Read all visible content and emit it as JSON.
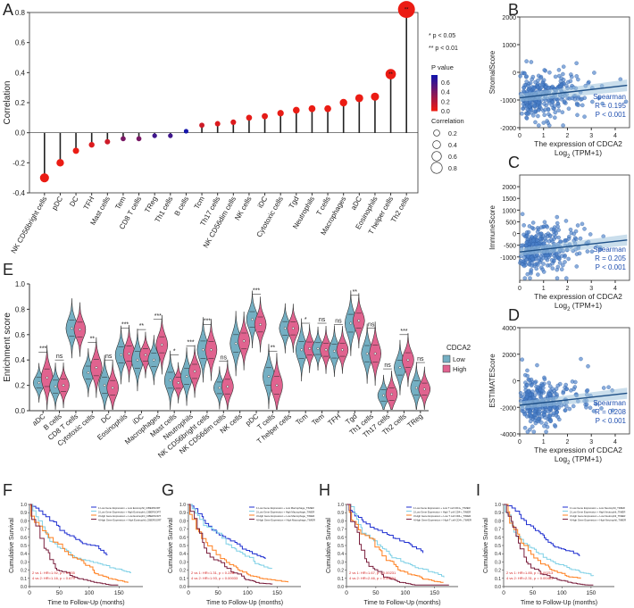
{
  "panel_labels": [
    "A",
    "B",
    "C",
    "D",
    "E",
    "F",
    "G",
    "H",
    "I"
  ],
  "chart_data": [
    {
      "id": "A",
      "type": "lollipop",
      "ylabel": "Correlation",
      "ylim": [
        -0.4,
        0.8
      ],
      "yticks": [
        "-0.4",
        "-0.2",
        "0.0",
        "0.2",
        "0.4",
        "0.6",
        "0.8"
      ],
      "categories": [
        "NK CD56bright cells",
        "pDC",
        "DC",
        "TFH",
        "Mast cells",
        "Tem",
        "CD8 T cells",
        "TReg",
        "Th1 cells",
        "B cells",
        "Tcm",
        "Th17 cells",
        "NK CD56dim cells",
        "NK cells",
        "iDC",
        "Cytotoxic cells",
        "Tgd",
        "Neutrophils",
        "T cells",
        "Macrophages",
        "aDC",
        "Eosinophils",
        "T helper cells",
        "Th2 cells"
      ],
      "values": [
        -0.3,
        -0.2,
        -0.12,
        -0.08,
        -0.06,
        -0.04,
        -0.04,
        -0.02,
        -0.02,
        0.01,
        0.05,
        0.06,
        0.07,
        0.1,
        0.11,
        0.13,
        0.15,
        0.16,
        0.16,
        0.2,
        0.23,
        0.24,
        0.39,
        0.82
      ],
      "pvalues": [
        0.0,
        0.0,
        0.0,
        0.05,
        0.1,
        0.4,
        0.4,
        0.6,
        0.6,
        0.75,
        0.1,
        0.05,
        0.05,
        0.02,
        0.02,
        0.01,
        0.0,
        0.0,
        0.0,
        0.0,
        0.0,
        0.0,
        0.0,
        0.0
      ],
      "stars": [
        "",
        "",
        "",
        "",
        "",
        "",
        "",
        "",
        "",
        "",
        "",
        "",
        "",
        "",
        "",
        "",
        "",
        "",
        "",
        "",
        "",
        "",
        "**",
        "**"
      ],
      "legend": {
        "sig1": "* p < 0.05",
        "sig2": "** p < 0.01",
        "pvalue_title": "P value",
        "pvalue_ticks": [
          "0.6",
          "0.4",
          "0.2",
          "0.0"
        ],
        "corr_title": "Correlation",
        "corr_ticks": [
          "0.2",
          "0.4",
          "0.6",
          "0.8"
        ]
      }
    },
    {
      "id": "B",
      "type": "scatter",
      "ylabel": "StromalScore",
      "xlabel": "The expression of CDCA2",
      "xlabel2": "Log",
      "xlabel2_sub": "2",
      "xlabel2_rest": " (TPM+1)",
      "ylim": [
        -2000,
        2000
      ],
      "yticks": [
        "-2000",
        "-1000",
        "0",
        "1000",
        "2000"
      ],
      "xticks": [
        "0",
        "1",
        "2",
        "3",
        "4"
      ],
      "stats": [
        "Spearman",
        "R = 0.195",
        "P < 0.001"
      ]
    },
    {
      "id": "C",
      "type": "scatter",
      "ylabel": "ImmuneScore",
      "xlabel": "The expression of CDCA2",
      "xlabel2": "Log",
      "xlabel2_sub": "2",
      "xlabel2_rest": " (TPM+1)",
      "ylim": [
        -2000,
        2500
      ],
      "yticks": [
        "-1000",
        "-500",
        "0",
        "500",
        "1000",
        "1500",
        "2000"
      ],
      "xticks": [
        "0",
        "1",
        "2",
        "3",
        "4"
      ],
      "stats": [
        "Spearman",
        "R = 0.205",
        "P < 0.001"
      ]
    },
    {
      "id": "D",
      "type": "scatter",
      "ylabel": "ESTIMATEScore",
      "xlabel": "The expression of CDCA2",
      "xlabel2": "Log",
      "xlabel2_sub": "2",
      "xlabel2_rest": " (TPM+1)",
      "ylim": [
        -4000,
        4000
      ],
      "yticks": [
        "-4000",
        "-2000",
        "0",
        "2000",
        "4000"
      ],
      "xticks": [
        "0",
        "1",
        "2",
        "3",
        "4"
      ],
      "stats": [
        "Spearman",
        "R = 0.208",
        "P < 0.001"
      ]
    },
    {
      "id": "E",
      "type": "violin",
      "ylabel": "Enrichment score",
      "ylim": [
        0,
        1
      ],
      "yticks": [
        "0.0",
        "0.2",
        "0.4",
        "0.6",
        "0.8",
        "1.0"
      ],
      "legend_title": "CDCA2",
      "legend_items": [
        "Low",
        "High"
      ],
      "colors": {
        "low": "#74afc3",
        "high": "#e0638f"
      },
      "categories": [
        "aDC",
        "B cells",
        "CD8 T cells",
        "Cytotoxic cells",
        "DC",
        "Eosinophils",
        "iDC",
        "Macrophages",
        "Mast cells",
        "Neutrophils",
        "NK CD56bright cells",
        "NK CD56dim cells",
        "NK cells",
        "pDC",
        "T cells",
        "T helper cells",
        "Tcm",
        "Tem",
        "TFH",
        "Tgd",
        "Th1 cells",
        "Th17 cells",
        "Th2 cells",
        "TReg"
      ],
      "low_medians": [
        0.22,
        0.19,
        0.65,
        0.3,
        0.2,
        0.44,
        0.4,
        0.4,
        0.24,
        0.27,
        0.48,
        0.18,
        0.53,
        0.72,
        0.27,
        0.65,
        0.48,
        0.49,
        0.47,
        0.69,
        0.45,
        0.12,
        0.34,
        0.18
      ],
      "high_medians": [
        0.26,
        0.2,
        0.64,
        0.34,
        0.18,
        0.45,
        0.44,
        0.52,
        0.22,
        0.31,
        0.48,
        0.19,
        0.55,
        0.68,
        0.2,
        0.65,
        0.49,
        0.48,
        0.48,
        0.71,
        0.45,
        0.13,
        0.4,
        0.17
      ],
      "sig": [
        "***",
        "ns",
        "",
        "**",
        "ns",
        "***",
        "**",
        "***",
        "*",
        "***",
        "***",
        "ns",
        "",
        "***",
        "**",
        "",
        "*",
        "ns",
        "ns",
        "**",
        "ns",
        "ns",
        "***",
        "ns"
      ]
    },
    {
      "id": "F",
      "type": "km",
      "ylabel": "Cumulative Survival",
      "xlabel": "Time to Follow-Up (months)",
      "yticks": [
        "0.0",
        "0.1",
        "0.2",
        "0.3",
        "0.4",
        "0.5",
        "0.6",
        "0.7",
        "0.8",
        "0.9",
        "1.0"
      ],
      "xticks": [
        "0",
        "50",
        "100",
        "150"
      ],
      "legend": [
        "1:Low Gene Expression + Low Eosinophil_CIBERSORT",
        "2:Low Gene Expression + High Eosinophil_CIBERSORT",
        "3:High Gene Expression + Low Eosinophil_CIBERSORT",
        "4:High Gene Expression + High Eosinophil_CIBERSORT"
      ],
      "stats": [
        "2 vs 1: HR=1.92, p = 0.035",
        "4 vs 2: HR=1.16, p = 0.679"
      ]
    },
    {
      "id": "G",
      "type": "km",
      "ylabel": "Cumulative Survival",
      "xlabel": "Time to Follow-Up (months)",
      "yticks": [
        "0.0",
        "0.1",
        "0.2",
        "0.3",
        "0.4",
        "0.5",
        "0.6",
        "0.7",
        "0.8",
        "0.9",
        "1.0"
      ],
      "xticks": [
        "0",
        "50",
        "100",
        "150"
      ],
      "legend": [
        "1:Low Gene Expression + Low Macrophage_TIMER",
        "2:Low Gene Expression + High Macrophage_TIMER",
        "3:High Gene Expression + Low Macrophage_TIMER",
        "4:High Gene Expression + High Macrophage_TIMER"
      ],
      "stats": [
        "2 vs 1: HR=1.31, p = 0.228",
        "4 vs 2: HR=1.93, p = 0.00033"
      ]
    },
    {
      "id": "H",
      "type": "km",
      "ylabel": "Cumulative Survival",
      "xlabel": "Time to Follow-Up (months)",
      "yticks": [
        "0.0",
        "0.1",
        "0.2",
        "0.3",
        "0.4",
        "0.5",
        "0.6",
        "0.7",
        "0.8",
        "0.9",
        "1.0"
      ],
      "xticks": [
        "0",
        "50",
        "100",
        "150"
      ],
      "legend": [
        "1:Low Gene Expression + Low T cell CD4+_TIMER",
        "2:Low Gene Expression + High T cell CD4+_TIMER",
        "3:High Gene Expression + Low T cell CD4+_TIMER",
        "4:High Gene Expression + High T cell CD4+_TIMER"
      ],
      "stats": [
        "2 vs 1: HR=1.67, p = 0.00231",
        "4 vs 2: HR=2.46, p = 0.00251"
      ]
    },
    {
      "id": "I",
      "type": "km",
      "ylabel": "Cumulative Survival",
      "xlabel": "Time to Follow-Up (months)",
      "yticks": [
        "0.0",
        "0.1",
        "0.2",
        "0.3",
        "0.4",
        "0.5",
        "0.6",
        "0.7",
        "0.8",
        "0.9",
        "1.0"
      ],
      "xticks": [
        "0",
        "50",
        "100",
        "150"
      ],
      "legend": [
        "1:Low Gene Expression + Low Neutrophil_TIMER",
        "2:Low Gene Expression + High Neutrophil_TIMER",
        "3:High Gene Expression + Low Neutrophil_TIMER",
        "4:High Gene Expression + High Neutrophil_TIMER"
      ],
      "stats": [
        "2 vs 1: HR=1.85, p = 0.00213",
        "4 vs 2: HR=2.31, p = 0.00461"
      ]
    }
  ]
}
